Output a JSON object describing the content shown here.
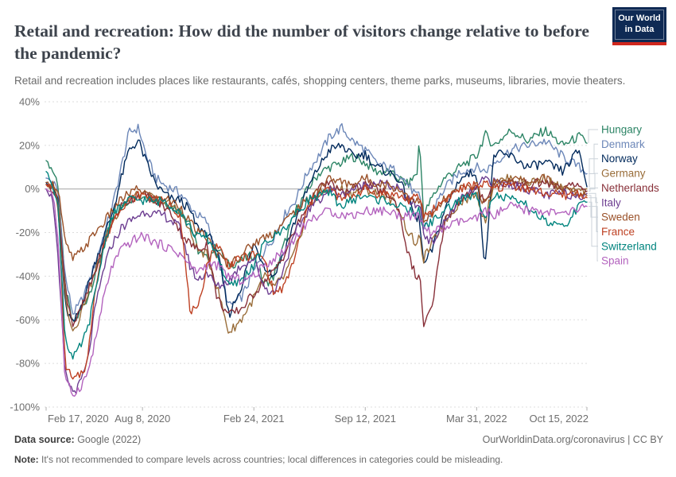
{
  "header": {
    "title": "Retail and recreation: How did the number of visitors change relative to before the pandemic?",
    "subtitle": "Retail and recreation includes places like restaurants, cafés, shopping centers, theme parks, museums, libraries, movie theaters.",
    "logo": {
      "line1": "Our World",
      "line2": "in Data",
      "bg_color": "#0F2A54",
      "accent_color": "#D0271E"
    }
  },
  "footer": {
    "source_label": "Data source:",
    "source_value": " Google (2022)",
    "link_text": "OurWorldinData.org/coronavirus | CC BY",
    "note_label": "Note:",
    "note_value": " It's not recommended to compare levels across countries; local differences in categories could be misleading."
  },
  "chart_data": {
    "type": "line",
    "title": "Retail and recreation: How did the number of visitors change relative to before the pandemic?",
    "xlabel": "",
    "ylabel": "",
    "y_unit": "%",
    "ylim": [
      -100,
      40
    ],
    "grid": true,
    "legend_position": "right",
    "y_ticks": [
      40,
      20,
      0,
      -20,
      -40,
      -60,
      -80,
      -100
    ],
    "x_ticks": [
      {
        "label": "Feb 17, 2020",
        "day": 0
      },
      {
        "label": "Aug 8, 2020",
        "day": 173
      },
      {
        "label": "Feb 24, 2021",
        "day": 373
      },
      {
        "label": "Sep 12, 2021",
        "day": 573
      },
      {
        "label": "Mar 31, 2022",
        "day": 773
      },
      {
        "label": "Oct 15, 2022",
        "day": 971
      }
    ],
    "x_unit": "days since 2020-02-17",
    "days": [
      0,
      13,
      22,
      34,
      48,
      58,
      74,
      88,
      105,
      119,
      135,
      149,
      166,
      180,
      197,
      211,
      227,
      241,
      258,
      272,
      288,
      307,
      328,
      350,
      373,
      392,
      409,
      428,
      448,
      470,
      489,
      509,
      531,
      550,
      573,
      592,
      611,
      632,
      650,
      667,
      670,
      678,
      693,
      715,
      743,
      773,
      788,
      804,
      835,
      865,
      896,
      927,
      957,
      971
    ],
    "series": [
      {
        "name": "Hungary",
        "color": "#2C8465",
        "values": [
          13,
          8,
          2,
          -45,
          -62,
          -58,
          -50,
          -40,
          -24,
          -14,
          -8,
          -5,
          -4,
          -2,
          -5,
          -6,
          -8,
          -10,
          -15,
          -28,
          -32,
          -26,
          -35,
          -33,
          -30,
          -44,
          -40,
          -25,
          -10,
          0,
          7,
          10,
          12,
          15,
          12,
          8,
          8,
          5,
          2,
          8,
          24,
          -12,
          -4,
          5,
          10,
          15,
          25,
          20,
          27,
          22,
          27,
          20,
          24,
          21
        ]
      },
      {
        "name": "Denmark",
        "color": "#6C87B8",
        "values": [
          5,
          3,
          -2,
          -40,
          -57,
          -54,
          -45,
          -34,
          -20,
          -8,
          10,
          26,
          28,
          15,
          5,
          2,
          0,
          -2,
          -8,
          -12,
          -15,
          -30,
          -54,
          -50,
          -38,
          -28,
          -22,
          -12,
          -5,
          8,
          15,
          24,
          28,
          22,
          18,
          12,
          10,
          8,
          2,
          -4,
          -2,
          -18,
          -10,
          0,
          8,
          10,
          8,
          12,
          18,
          20,
          22,
          15,
          10,
          7
        ]
      },
      {
        "name": "Norway",
        "color": "#00295B",
        "values": [
          3,
          0,
          -5,
          -54,
          -62,
          -57,
          -45,
          -34,
          -21,
          -11,
          5,
          18,
          22,
          12,
          2,
          -2,
          -5,
          -5,
          -10,
          -18,
          -20,
          -28,
          -58,
          -45,
          -25,
          -35,
          -40,
          -28,
          -14,
          0,
          10,
          18,
          20,
          15,
          16,
          10,
          8,
          5,
          -5,
          -15,
          -12,
          -35,
          -28,
          -10,
          5,
          8,
          -35,
          16,
          15,
          10,
          12,
          8,
          18,
          1
        ]
      },
      {
        "name": "Germany",
        "color": "#996D39",
        "values": [
          2,
          0,
          -5,
          -50,
          -65,
          -60,
          -48,
          -38,
          -25,
          -15,
          -8,
          -5,
          -2,
          -3,
          -5,
          -5,
          -8,
          -10,
          -20,
          -28,
          -30,
          -45,
          -66,
          -60,
          -50,
          -40,
          -45,
          -40,
          -28,
          -10,
          -2,
          0,
          0,
          -2,
          0,
          -2,
          -3,
          -8,
          -20,
          -26,
          -22,
          -32,
          -25,
          -15,
          -6,
          -2,
          -15,
          3,
          5,
          3,
          5,
          0,
          -2,
          0
        ]
      },
      {
        "name": "Netherlands",
        "color": "#883039",
        "values": [
          2,
          0,
          -8,
          -45,
          -62,
          -58,
          -48,
          -38,
          -25,
          -15,
          -8,
          -5,
          -3,
          -3,
          -6,
          -8,
          -12,
          -20,
          -25,
          -28,
          -25,
          -50,
          -58,
          -55,
          -48,
          -42,
          -38,
          -30,
          -18,
          -8,
          0,
          3,
          -2,
          0,
          2,
          0,
          -2,
          -8,
          -30,
          -42,
          -38,
          -62,
          -55,
          -15,
          -5,
          0,
          -5,
          2,
          3,
          2,
          3,
          0,
          2,
          -1
        ]
      },
      {
        "name": "Italy",
        "color": "#6D3E91",
        "values": [
          0,
          -5,
          -35,
          -85,
          -93,
          -91,
          -80,
          -55,
          -35,
          -25,
          -18,
          -15,
          -12,
          -10,
          -12,
          -12,
          -15,
          -18,
          -35,
          -42,
          -38,
          -45,
          -42,
          -35,
          -32,
          -45,
          -48,
          -35,
          -20,
          -10,
          -5,
          0,
          -3,
          0,
          2,
          3,
          2,
          0,
          -5,
          -8,
          -6,
          -20,
          -25,
          -15,
          -5,
          0,
          5,
          3,
          2,
          0,
          -3,
          -2,
          -3,
          -2
        ]
      },
      {
        "name": "Sweden",
        "color": "#9A5129",
        "values": [
          3,
          2,
          0,
          -25,
          -32,
          -30,
          -25,
          -20,
          -15,
          -10,
          -5,
          -2,
          0,
          -2,
          -5,
          -4,
          -6,
          -8,
          -15,
          -20,
          -22,
          -30,
          -35,
          -30,
          -25,
          -22,
          -20,
          -15,
          -10,
          -5,
          0,
          5,
          3,
          2,
          5,
          3,
          2,
          0,
          -3,
          -6,
          -4,
          -15,
          -12,
          -5,
          0,
          2,
          -8,
          3,
          5,
          3,
          5,
          0,
          -2,
          -3
        ]
      },
      {
        "name": "France",
        "color": "#BE4123",
        "values": [
          2,
          0,
          -8,
          -80,
          -88,
          -86,
          -80,
          -45,
          -25,
          -15,
          -8,
          -5,
          -3,
          -3,
          -5,
          -6,
          -8,
          -12,
          -55,
          -57,
          -35,
          -25,
          -35,
          -32,
          -30,
          -32,
          -48,
          -45,
          -30,
          -8,
          -2,
          0,
          -5,
          -3,
          0,
          -2,
          -2,
          -3,
          -5,
          -4,
          -3,
          -12,
          -10,
          -5,
          0,
          2,
          2,
          0,
          2,
          0,
          -2,
          -3,
          -2,
          -4
        ]
      },
      {
        "name": "Switzerland",
        "color": "#00847E",
        "values": [
          8,
          2,
          -10,
          -68,
          -78,
          -74,
          -65,
          -48,
          -25,
          -12,
          -8,
          -5,
          -5,
          -5,
          -6,
          -5,
          -8,
          -10,
          -18,
          -22,
          -22,
          -30,
          -45,
          -42,
          -35,
          -25,
          -22,
          -18,
          -12,
          -5,
          -3,
          -2,
          -8,
          -5,
          -3,
          -5,
          -5,
          -8,
          -10,
          -11,
          -10,
          -18,
          -15,
          -10,
          -5,
          -3,
          -12,
          -3,
          -5,
          -8,
          -15,
          -18,
          -8,
          -6
        ]
      },
      {
        "name": "Spain",
        "color": "#B363BE",
        "values": [
          0,
          -2,
          -25,
          -88,
          -94,
          -92,
          -85,
          -70,
          -48,
          -35,
          -28,
          -25,
          -22,
          -22,
          -25,
          -26,
          -28,
          -30,
          -35,
          -38,
          -35,
          -35,
          -40,
          -42,
          -40,
          -35,
          -32,
          -28,
          -22,
          -15,
          -12,
          -10,
          -12,
          -12,
          -10,
          -10,
          -10,
          -12,
          -12,
          -13,
          -12,
          -18,
          -20,
          -18,
          -15,
          -14,
          -10,
          -12,
          -8,
          -10,
          -10,
          -12,
          -9,
          -8
        ]
      }
    ]
  }
}
